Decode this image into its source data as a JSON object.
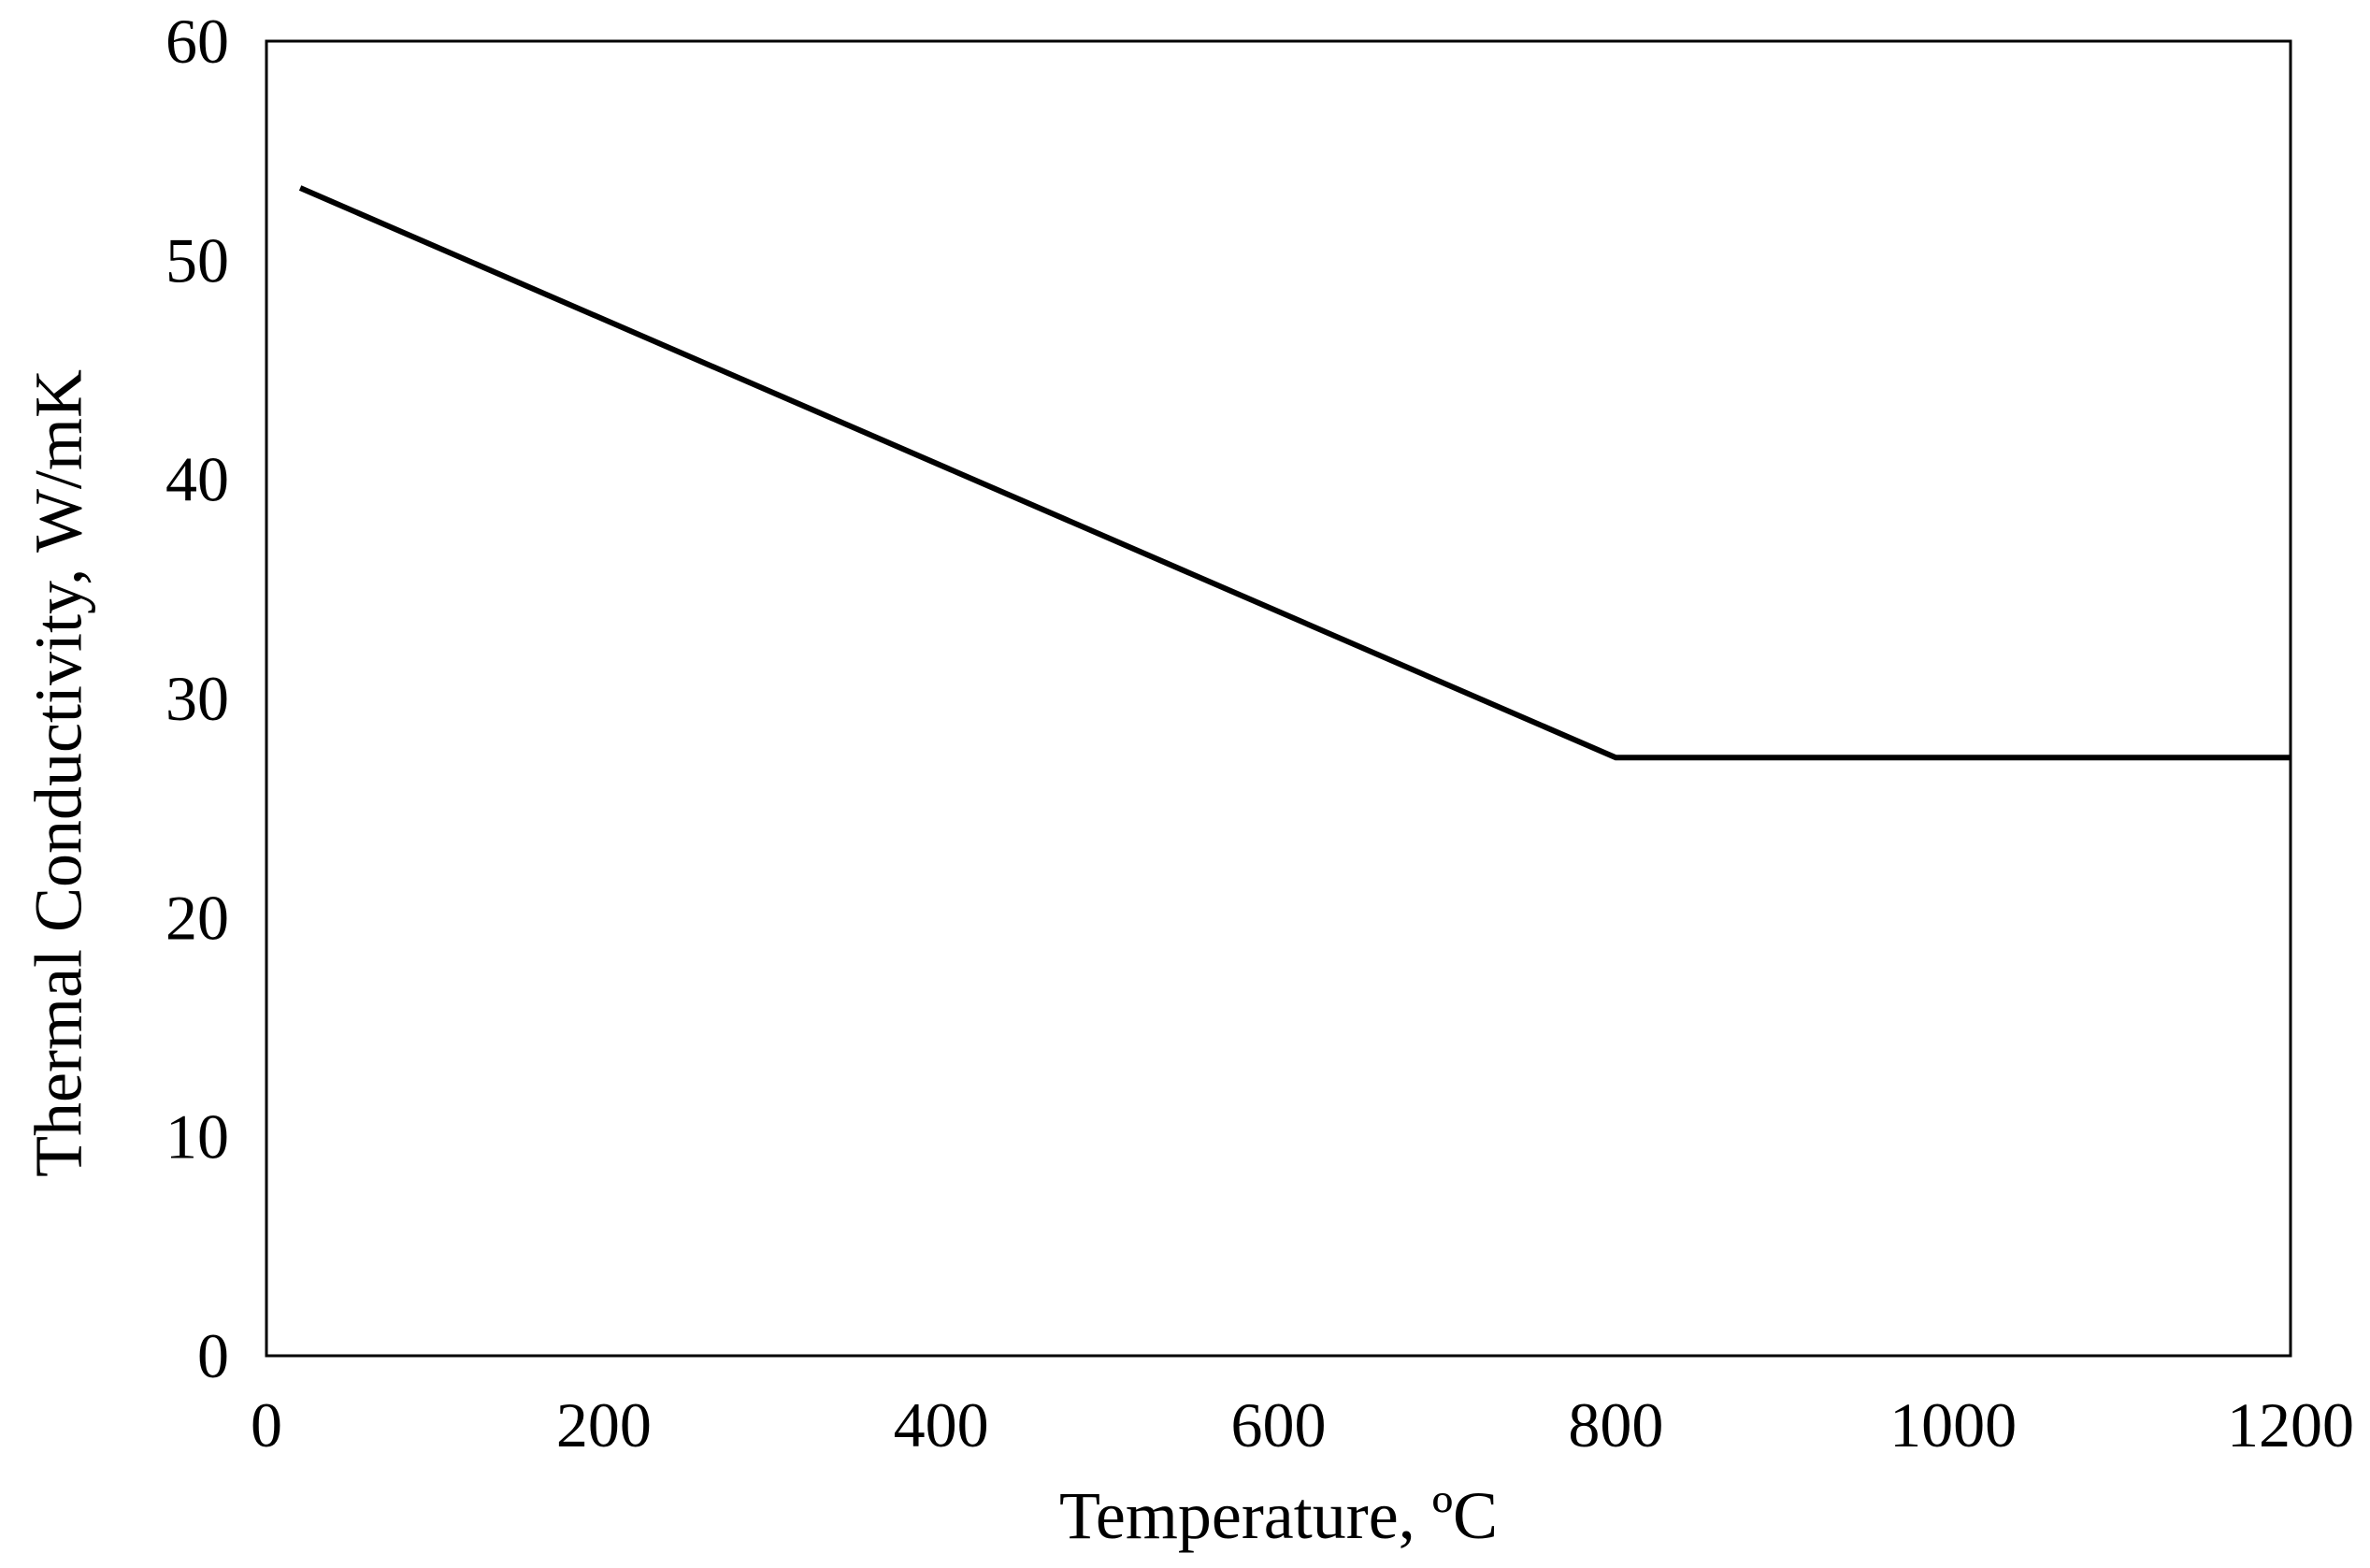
{
  "chart_data": {
    "type": "line",
    "title": "",
    "xlabel": "Temperature, ºC",
    "ylabel": "Thermal Conductivity,  W/mK",
    "xlim": [
      0,
      1200
    ],
    "ylim": [
      0,
      60
    ],
    "xticks": [
      "0",
      "200",
      "400",
      "600",
      "800",
      "1000",
      "1200"
    ],
    "yticks": [
      "0",
      "10",
      "20",
      "30",
      "40",
      "50",
      "60"
    ],
    "grid": false,
    "legend": "none",
    "series": [
      {
        "color": "#000000",
        "points": [
          {
            "x": 20,
            "y": 53.3
          },
          {
            "x": 800,
            "y": 27.3
          },
          {
            "x": 1200,
            "y": 27.3
          }
        ]
      }
    ]
  }
}
